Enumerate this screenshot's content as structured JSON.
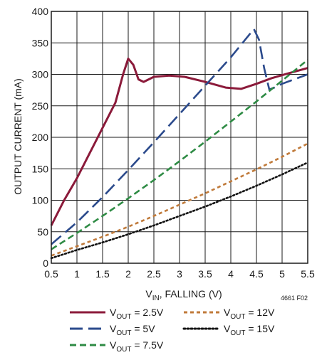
{
  "chart_data": {
    "type": "line",
    "xlabel": {
      "main": "V",
      "sub": "IN",
      "rest": ", FALLING (V)"
    },
    "ylabel": "OUTPUT CURRENT (mA)",
    "figure_id": "4661 F02",
    "xlim": [
      0.5,
      5.5
    ],
    "ylim": [
      0,
      400
    ],
    "xticks": [
      0.5,
      1,
      1.5,
      2,
      2.5,
      3,
      3.5,
      4,
      4.5,
      5,
      5.5
    ],
    "xtick_labels": [
      "0.5",
      "1",
      "1.5",
      "2",
      "2.5",
      "3",
      "3.5",
      "4",
      "4.5",
      "5",
      "5.5"
    ],
    "yticks": [
      0,
      50,
      100,
      150,
      200,
      250,
      300,
      350,
      400
    ],
    "ytick_labels": [
      "0",
      "50",
      "100",
      "150",
      "200",
      "250",
      "300",
      "350",
      "400"
    ],
    "grid": true,
    "legend_position": "bottom",
    "series": [
      {
        "name": {
          "main": "V",
          "sub": "OUT",
          "rest": " = 2.5V"
        },
        "color": "#8b1a3a",
        "dash": "solid",
        "points": [
          [
            0.5,
            60
          ],
          [
            0.75,
            100
          ],
          [
            1,
            135
          ],
          [
            1.25,
            175
          ],
          [
            1.5,
            215
          ],
          [
            1.75,
            255
          ],
          [
            1.9,
            300
          ],
          [
            2.0,
            325
          ],
          [
            2.1,
            315
          ],
          [
            2.2,
            292
          ],
          [
            2.3,
            288
          ],
          [
            2.5,
            296
          ],
          [
            2.8,
            298
          ],
          [
            3.1,
            296
          ],
          [
            3.5,
            288
          ],
          [
            3.9,
            279
          ],
          [
            4.2,
            277
          ],
          [
            4.5,
            285
          ],
          [
            4.8,
            294
          ],
          [
            5.1,
            301
          ],
          [
            5.5,
            310
          ]
        ]
      },
      {
        "name": {
          "main": "V",
          "sub": "OUT",
          "rest": " = 5V"
        },
        "color": "#2b4a8c",
        "dash": "longdash",
        "points": [
          [
            0.5,
            30
          ],
          [
            1,
            65
          ],
          [
            1.5,
            105
          ],
          [
            2,
            148
          ],
          [
            2.5,
            192
          ],
          [
            3,
            237
          ],
          [
            3.5,
            282
          ],
          [
            4,
            327
          ],
          [
            4.3,
            357
          ],
          [
            4.45,
            372
          ],
          [
            4.55,
            355
          ],
          [
            4.65,
            310
          ],
          [
            4.75,
            276
          ],
          [
            4.85,
            279
          ],
          [
            5.0,
            285
          ],
          [
            5.5,
            300
          ]
        ]
      },
      {
        "name": {
          "main": "V",
          "sub": "OUT",
          "rest": " = 7.5V"
        },
        "color": "#2e8b44",
        "dash": "dash",
        "points": [
          [
            0.5,
            22
          ],
          [
            1,
            48
          ],
          [
            1.5,
            75
          ],
          [
            2,
            103
          ],
          [
            2.5,
            132
          ],
          [
            3,
            162
          ],
          [
            3.5,
            193
          ],
          [
            4,
            225
          ],
          [
            4.5,
            257
          ],
          [
            5,
            290
          ],
          [
            5.5,
            323
          ]
        ]
      },
      {
        "name": {
          "main": "V",
          "sub": "OUT",
          "rest": " = 12V"
        },
        "color": "#c07a3a",
        "dash": "shortdash",
        "points": [
          [
            0.5,
            12
          ],
          [
            1,
            27
          ],
          [
            1.5,
            42
          ],
          [
            2,
            58
          ],
          [
            2.5,
            75
          ],
          [
            3,
            93
          ],
          [
            3.5,
            111
          ],
          [
            4,
            130
          ],
          [
            4.5,
            149
          ],
          [
            5,
            169
          ],
          [
            5.5,
            190
          ]
        ]
      },
      {
        "name": {
          "main": "V",
          "sub": "OUT",
          "rest": " = 15V"
        },
        "color": "#111111",
        "dash": "dot",
        "points": [
          [
            0.5,
            8
          ],
          [
            1,
            21
          ],
          [
            1.5,
            33
          ],
          [
            2,
            46
          ],
          [
            2.5,
            60
          ],
          [
            3,
            75
          ],
          [
            3.5,
            90
          ],
          [
            4,
            106
          ],
          [
            4.5,
            123
          ],
          [
            5,
            141
          ],
          [
            5.5,
            160
          ]
        ]
      }
    ]
  }
}
